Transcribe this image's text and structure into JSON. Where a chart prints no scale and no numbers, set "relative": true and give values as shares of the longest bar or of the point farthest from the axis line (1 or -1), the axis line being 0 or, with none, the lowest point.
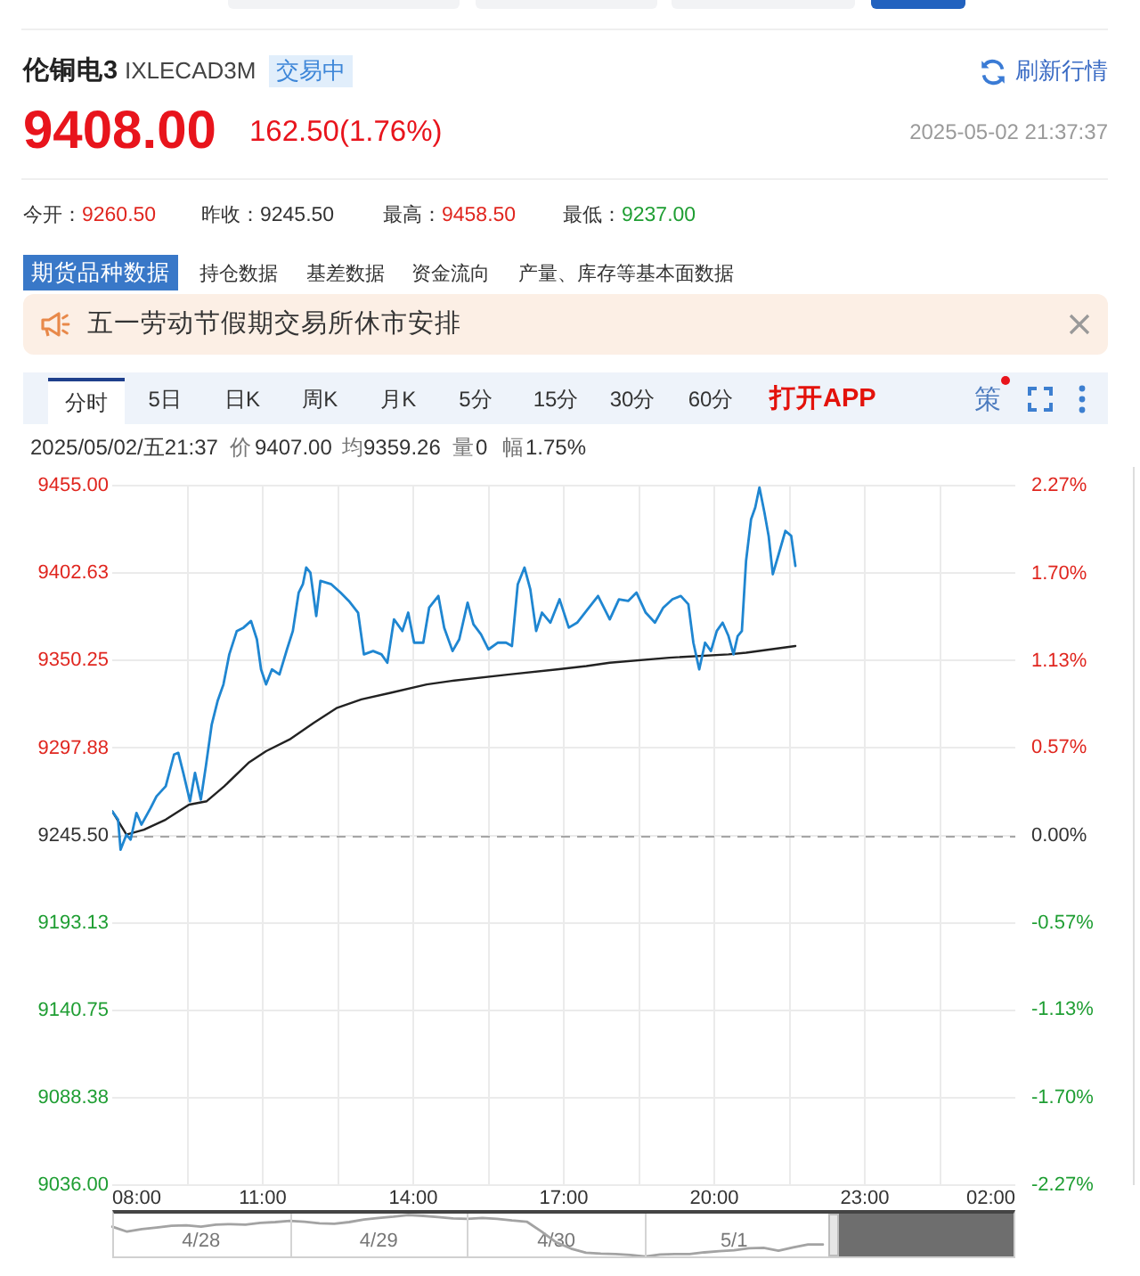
{
  "chart_data": [
    {
      "type": "line",
      "title": "伦铜电3",
      "subtitle": "IXLECAD3M",
      "annotations": [
        "交易中",
        "刷新行情",
        "9408.00",
        "162.50(1.76%)",
        "2025-05-02 21:37:37",
        "今开：",
        "9260.50",
        "昨收：",
        "9245.50",
        "最高：",
        "9458.50",
        "最低：",
        "9237.00",
        "期货品种数据",
        "持仓数据",
        "基差数据",
        "资金流向",
        "产量、库存等基本面数据",
        "五一劳动节假期交易所休市安排",
        "分时",
        "5日",
        "日K",
        "周K",
        "月K",
        "5分",
        "15分",
        "30分",
        "60分",
        "打开APP",
        "策",
        "2025/05/02/五21:37",
        "价",
        "9407.00",
        "均",
        "9359.26",
        "量",
        "0",
        "幅",
        "1.75%"
      ],
      "series": [
        {
          "color": "#1f86d1",
          "x": [
            "2025-05-02T08:00",
            "2025-05-02T08:07",
            "2025-05-02T08:10",
            "2025-05-02T08:17",
            "2025-05-02T08:22",
            "2025-05-02T08:29",
            "2025-05-02T08:35",
            "2025-05-02T08:46",
            "2025-05-02T08:53",
            "2025-05-02T09:04",
            "2025-05-02T09:14",
            "2025-05-02T09:19",
            "2025-05-02T09:25",
            "2025-05-02T09:33",
            "2025-05-02T09:39",
            "2025-05-02T09:46",
            "2025-05-02T09:52",
            "2025-05-02T09:59",
            "2025-05-02T10:06",
            "2025-05-02T10:13",
            "2025-05-02T10:20",
            "2025-05-02T10:29",
            "2025-05-02T10:37",
            "2025-05-02T10:46",
            "2025-05-02T10:53",
            "2025-05-02T10:58",
            "2025-05-02T11:04",
            "2025-05-02T11:11",
            "2025-05-02T11:20",
            "2025-05-02T11:29",
            "2025-05-02T11:36",
            "2025-05-02T11:43",
            "2025-05-02T11:48",
            "2025-05-02T11:52",
            "2025-05-02T11:57",
            "2025-05-02T12:04",
            "2025-05-02T12:09",
            "2025-05-02T12:22",
            "2025-05-02T12:33",
            "2025-05-02T12:43",
            "2025-05-02T12:54",
            "2025-05-02T13:01",
            "2025-05-02T13:12",
            "2025-05-02T13:22",
            "2025-05-02T13:29",
            "2025-05-02T13:37",
            "2025-05-02T13:47",
            "2025-05-02T13:54",
            "2025-05-02T14:01",
            "2025-05-02T14:12",
            "2025-05-02T14:19",
            "2025-05-02T14:30",
            "2025-05-02T14:37",
            "2025-05-02T14:47",
            "2025-05-02T14:55",
            "2025-05-02T15:05",
            "2025-05-02T15:12",
            "2025-05-02T15:21",
            "2025-05-02T15:30",
            "2025-05-02T15:41",
            "2025-05-02T15:51",
            "2025-05-02T15:58",
            "2025-05-02T16:05",
            "2025-05-02T16:13",
            "2025-05-02T16:20",
            "2025-05-02T16:27",
            "2025-05-02T16:34",
            "2025-05-02T16:44",
            "2025-05-02T16:55",
            "2025-05-02T17:06",
            "2025-05-02T17:16",
            "2025-05-02T17:27",
            "2025-05-02T17:41",
            "2025-05-02T17:55",
            "2025-05-02T18:06",
            "2025-05-02T18:17",
            "2025-05-02T18:27",
            "2025-05-02T18:38",
            "2025-05-02T18:49",
            "2025-05-02T18:59",
            "2025-05-02T19:10",
            "2025-05-02T19:20",
            "2025-05-02T19:29",
            "2025-05-02T19:35",
            "2025-05-02T19:42",
            "2025-05-02T19:49",
            "2025-05-02T19:56",
            "2025-05-02T20:03",
            "2025-05-02T20:10",
            "2025-05-02T20:17",
            "2025-05-02T20:23",
            "2025-05-02T20:28",
            "2025-05-02T20:33",
            "2025-05-02T20:38",
            "2025-05-02T20:44",
            "2025-05-02T20:49",
            "2025-05-02T20:54",
            "2025-05-02T21:00",
            "2025-05-02T21:05",
            "2025-05-02T21:10",
            "2025-05-02T21:17",
            "2025-05-02T21:25",
            "2025-05-02T21:32",
            "2025-05-02T21:37"
          ],
          "values": [
            9260,
            9255,
            9237,
            9246,
            9243,
            9259,
            9252,
            9262,
            9269,
            9275,
            9294,
            9295,
            9283,
            9266,
            9283,
            9267,
            9287,
            9312,
            9326,
            9336,
            9354,
            9368,
            9370,
            9374,
            9363,
            9345,
            9336,
            9345,
            9342,
            9357,
            9368,
            9391,
            9396,
            9406,
            9403,
            9377,
            9398,
            9396,
            9391,
            9386,
            9379,
            9354,
            9356,
            9354,
            9349,
            9375,
            9368,
            9379,
            9361,
            9361,
            9382,
            9389,
            9370,
            9356,
            9363,
            9385,
            9372,
            9366,
            9357,
            9361,
            9361,
            9359,
            9396,
            9406,
            9393,
            9368,
            9379,
            9373,
            9387,
            9370,
            9373,
            9380,
            9389,
            9375,
            9387,
            9386,
            9391,
            9379,
            9373,
            9382,
            9387,
            9389,
            9384,
            9361,
            9345,
            9361,
            9356,
            9368,
            9373,
            9365,
            9354,
            9365,
            9368,
            9410,
            9435,
            9442,
            9454,
            9439,
            9425,
            9402,
            9414,
            9428,
            9425,
            9407
          ]
        },
        {
          "color": "#222222",
          "x": [
            "2025-05-02T08:00",
            "2025-05-02T08:17",
            "2025-05-02T08:38",
            "2025-05-02T09:04",
            "2025-05-02T09:32",
            "2025-05-02T09:53",
            "2025-05-02T10:14",
            "2025-05-02T10:43",
            "2025-05-02T11:04",
            "2025-05-02T11:32",
            "2025-05-02T12:01",
            "2025-05-02T12:29",
            "2025-05-02T12:58",
            "2025-05-02T13:33",
            "2025-05-02T14:16",
            "2025-05-02T14:44",
            "2025-05-02T15:55",
            "2025-05-02T16:52",
            "2025-05-02T17:27",
            "2025-05-02T17:55",
            "2025-05-02T19:06",
            "2025-05-02T20:17",
            "2025-05-02T20:38",
            "2025-05-02T21:37"
          ],
          "values": [
            9260,
            9246,
            9249,
            9255,
            9264,
            9266,
            9275,
            9289,
            9296,
            9303,
            9313,
            9322,
            9327,
            9331,
            9336,
            9338,
            9342,
            9345,
            9347,
            9349,
            9352,
            9354,
            9355,
            9359
          ]
        }
      ],
      "xlim": [
        "2025-05-02T08:00",
        "2025-05-03T02:00"
      ],
      "xticks": [
        {
          "value": "2025-05-02T08:00",
          "label": "08:00"
        },
        {
          "value": "2025-05-02T09:30",
          "label": null
        },
        {
          "value": "2025-05-02T11:00",
          "label": "11:00"
        },
        {
          "value": "2025-05-02T12:30",
          "label": null
        },
        {
          "value": "2025-05-02T14:00",
          "label": "14:00"
        },
        {
          "value": "2025-05-02T15:30",
          "label": null
        },
        {
          "value": "2025-05-02T17:00",
          "label": "17:00"
        },
        {
          "value": "2025-05-02T18:30",
          "label": null
        },
        {
          "value": "2025-05-02T20:00",
          "label": "20:00"
        },
        {
          "value": "2025-05-02T21:30",
          "label": null
        },
        {
          "value": "2025-05-02T23:00",
          "label": "23:00"
        },
        {
          "value": "2025-05-03T00:30",
          "label": null
        },
        {
          "value": "2025-05-03T02:00",
          "label": "02:00"
        }
      ],
      "ylim": [
        9036,
        9455
      ],
      "yticks": [
        {
          "value": 9036,
          "label": "9036.00"
        },
        9088.38,
        9140.75,
        9193.13,
        {
          "value": 9245.5,
          "label": "9245.50"
        },
        9297.88,
        9350.25,
        9402.63,
        {
          "value": 9455,
          "label": "9455.00"
        }
      ],
      "y2lim": [
        -2.27,
        2.27
      ],
      "y2ticks": [
        {
          "value": -2.27,
          "label": "-2.27%"
        },
        {
          "value": -1.7,
          "label": "-1.70%"
        },
        {
          "value": -1.13,
          "label": "-1.13%"
        },
        {
          "value": -0.57,
          "label": "-0.57%"
        },
        {
          "value": 0,
          "label": "0.00%"
        },
        {
          "value": 0.57,
          "label": "0.57%"
        },
        {
          "value": 1.13,
          "label": "1.13%"
        },
        {
          "value": 1.7,
          "label": "1.70%"
        },
        {
          "value": 2.27,
          "label": "2.27%"
        }
      ],
      "ref_lines": [
        {
          "axis": "y",
          "value": 9245.5,
          "color": "#a6a6a6",
          "line_style": "dashed"
        }
      ],
      "grid": true,
      "marker": "none"
    },
    {
      "type": "line",
      "relative": true,
      "color": "#a3a3a3",
      "categories": [
        null,
        null,
        null,
        null,
        null,
        null,
        "4/28",
        null,
        null,
        null,
        null,
        null,
        null,
        null,
        null,
        null,
        null,
        null,
        "4/29",
        null,
        null,
        null,
        null,
        null,
        null,
        null,
        null,
        null,
        null,
        null,
        "4/30",
        null,
        null,
        null,
        null,
        null,
        null,
        null,
        null,
        null,
        null,
        null,
        "5/1",
        null,
        null,
        null,
        null,
        null,
        null,
        null,
        null,
        null,
        null,
        null,
        null,
        null,
        null,
        null,
        null,
        null,
        null,
        null
      ],
      "values": [
        0.72,
        0.6,
        0.66,
        0.7,
        0.74,
        0.75,
        0.72,
        0.77,
        0.78,
        0.77,
        0.81,
        0.83,
        0.86,
        0.84,
        0.8,
        0.79,
        0.83,
        0.89,
        0.93,
        0.96,
        1,
        0.98,
        0.95,
        0.92,
        0.91,
        0.93,
        0.91,
        0.87,
        0.84,
        0.6,
        0.34,
        0.19,
        0.09,
        0.07,
        0.06,
        0.04,
        0,
        0.05,
        0.06,
        0.06,
        0.1,
        0.13,
        0.15,
        0.2,
        0.21,
        0.14,
        0.22,
        0.29,
        0.29,
        null,
        null,
        null,
        null,
        null,
        null,
        null,
        null,
        null,
        null,
        null,
        null,
        null
      ],
      "marker": "none"
    }
  ]
}
